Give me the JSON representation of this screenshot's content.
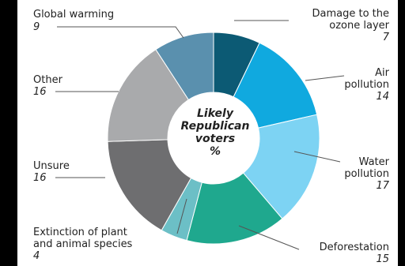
{
  "chart_data": {
    "type": "pie",
    "title": "Likely Republican voters %",
    "slices": [
      {
        "label": "Damage to the ozone layer",
        "value": 7,
        "color": "#0c5a74"
      },
      {
        "label": "Air pollution",
        "value": 14,
        "color": "#10a9df"
      },
      {
        "label": "Water pollution",
        "value": 17,
        "color": "#7dd3f3"
      },
      {
        "label": "Deforestation",
        "value": 15,
        "color": "#1fa88e"
      },
      {
        "label": "Extinction of plant and animal species",
        "value": 4,
        "color": "#6cbfc6"
      },
      {
        "label": "Unsure",
        "value": 16,
        "color": "#6e6e70"
      },
      {
        "label": "Other",
        "value": 16,
        "color": "#a9aaac"
      },
      {
        "label": "Global warming",
        "value": 9,
        "color": "#5a90ae"
      }
    ]
  },
  "labels": {
    "ozone_l1": "Damage to the",
    "ozone_l2": "ozone layer",
    "ozone_v": "7",
    "air_l1": "Air",
    "air_l2": "pollution",
    "air_v": "14",
    "water_l1": "Water",
    "water_l2": "pollution",
    "water_v": "17",
    "defor_l1": "Deforestation",
    "defor_v": "15",
    "ext_l1": "Extinction of plant",
    "ext_l2": "and animal species",
    "ext_v": "4",
    "unsure_l1": "Unsure",
    "unsure_v": "16",
    "other_l1": "Other",
    "other_v": "16",
    "gw_l1": "Global warming",
    "gw_v": "9"
  },
  "center": {
    "line1": "Likely",
    "line2": "Republican",
    "line3": "voters",
    "line4": "%"
  }
}
